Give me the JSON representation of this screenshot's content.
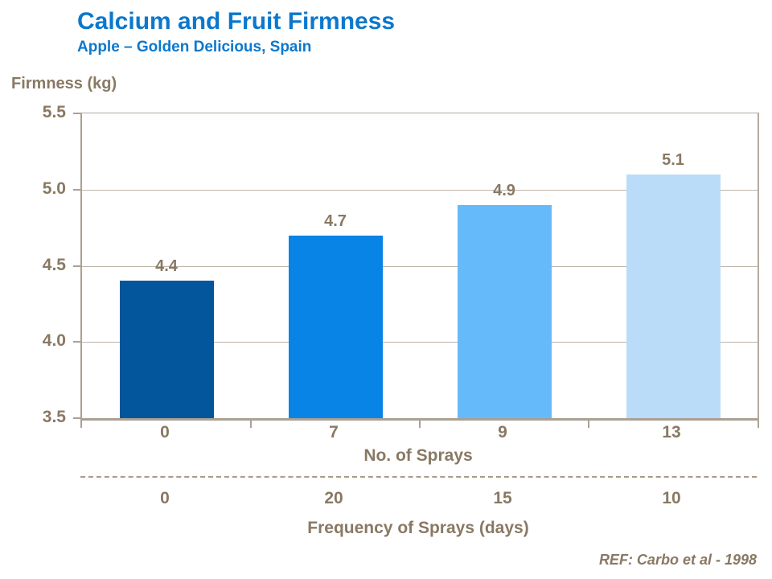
{
  "chart_data": {
    "type": "bar",
    "title": "Calcium and Fruit Firmness",
    "subtitle": "Apple – Golden Delicious,  Spain",
    "ylabel": "Firmness (kg)",
    "ylim": [
      3.5,
      5.5
    ],
    "ytick_labels": [
      "5.5",
      "5.0",
      "4.5",
      "4.0",
      "3.5"
    ],
    "grid": "horizontal",
    "legend": "none",
    "categories": [
      "0",
      "7",
      "9",
      "13"
    ],
    "xlabel": "No. of Sprays",
    "values": [
      4.4,
      4.7,
      4.9,
      5.1
    ],
    "value_labels": [
      "4.4",
      "4.7",
      "4.9",
      "5.1"
    ],
    "bar_colors": [
      "#03569b",
      "#0883e6",
      "#65baf9",
      "#badcf9"
    ],
    "secondary_axis": {
      "label": "Frequency of Sprays (days)",
      "values": [
        "0",
        "20",
        "15",
        "10"
      ]
    },
    "reference": "REF: Carbo et al - 1998"
  },
  "colors": {
    "title_blue": "#0b78cd",
    "text_brown": "#897963",
    "axis_line": "#aaa095",
    "gridline": "#bdb4aa",
    "background": "#ffffff"
  }
}
